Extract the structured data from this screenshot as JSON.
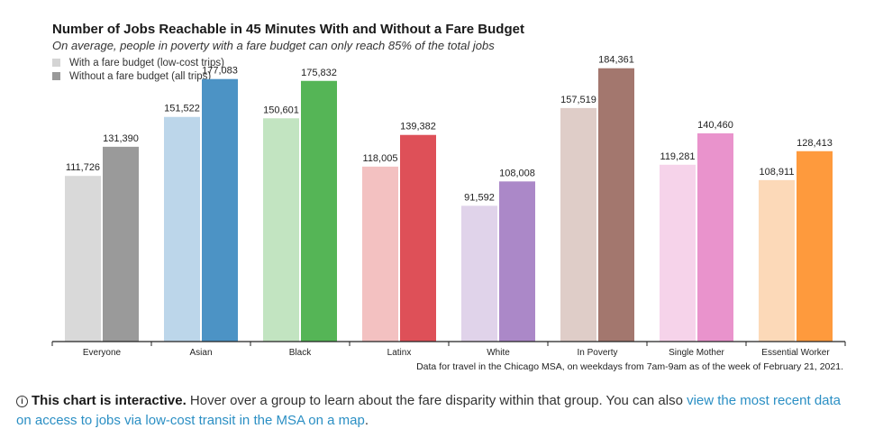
{
  "chart_data": {
    "type": "bar",
    "title": "Number of Jobs Reachable in 45 Minutes With and Without a Fare Budget",
    "subtitle": "On average, people in poverty with a fare budget can only reach 85% of the total jobs",
    "categories": [
      "Everyone",
      "Asian",
      "Black",
      "Latinx",
      "White",
      "In Poverty",
      "Single Mother",
      "Essential Worker"
    ],
    "series": [
      {
        "name": "With a fare budget (low-cost trips)",
        "values": [
          111726,
          151522,
          150601,
          118005,
          91592,
          157519,
          119281,
          108911
        ],
        "labels": [
          "111,726",
          "151,522",
          "150,601",
          "118,005",
          "91,592",
          "157,519",
          "119,281",
          "108,911"
        ],
        "colors": [
          "#d9d9d9",
          "#bcd6ea",
          "#c2e4c1",
          "#f3c1c1",
          "#e0d3ea",
          "#dfcdc8",
          "#f6d3ea",
          "#fcd9b8"
        ]
      },
      {
        "name": "Without a fare budget (all trips)",
        "values": [
          131390,
          177083,
          175832,
          139382,
          108008,
          184361,
          140460,
          128413
        ],
        "labels": [
          "131,390",
          "177,083",
          "175,832",
          "139,382",
          "108,008",
          "184,361",
          "140,460",
          "128,413"
        ],
        "colors": [
          "#9a9a9a",
          "#4c93c5",
          "#55b556",
          "#de5058",
          "#ab88c8",
          "#a3776e",
          "#e993cc",
          "#fe9a3d"
        ]
      }
    ],
    "legend": {
      "position": "top-left",
      "entries": [
        {
          "label": "With a fare budget (low-cost trips)",
          "color": "#d4d4d4"
        },
        {
          "label": "Without a fare budget (all trips)",
          "color": "#999999"
        }
      ]
    },
    "ylim": [
      0,
      200000
    ],
    "grid": false,
    "footnote": "Data for travel in the Chicago MSA, on weekdays from 7am-9am as of the week of February 21, 2021."
  },
  "info": {
    "icon": "info-icon",
    "lead": "This chart is interactive.",
    "text": " Hover over a group to learn about the fare disparity within that group. You can also ",
    "link": "view the most recent data on access to jobs via low-cost transit in the MSA on a map",
    "tail": "."
  }
}
